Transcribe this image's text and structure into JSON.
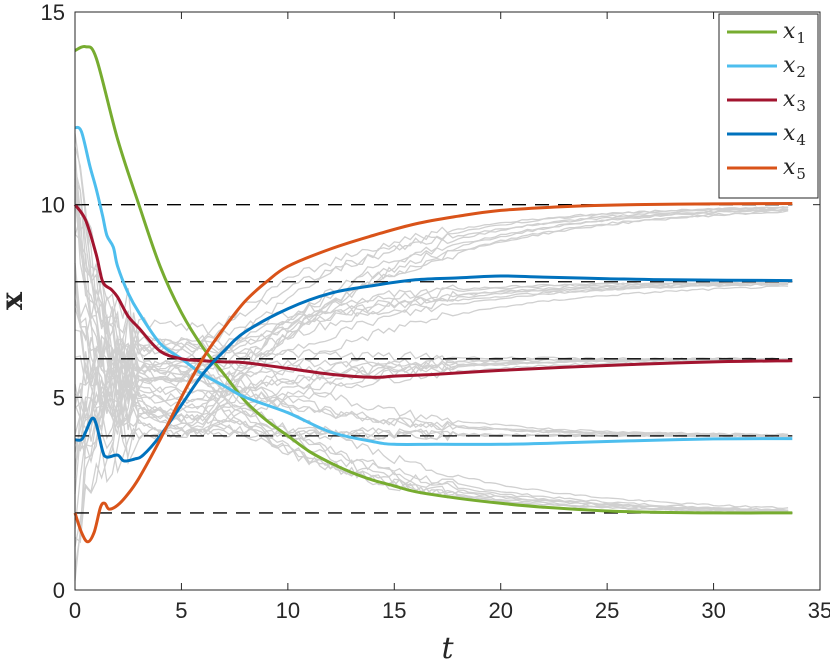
{
  "chart_data": {
    "type": "line",
    "xlabel": "t",
    "ylabel": "x",
    "xlim": [
      0,
      35
    ],
    "ylim": [
      0,
      15
    ],
    "xticks": [
      0,
      5,
      10,
      15,
      20,
      25,
      30,
      35
    ],
    "yticks": [
      0,
      5,
      10,
      15
    ],
    "grid": false,
    "legend_position": "top-right",
    "reference_lines": [
      2,
      4,
      6,
      8,
      10
    ],
    "series": [
      {
        "name": "x",
        "subscript": "1",
        "color": "#77AC30",
        "points": [
          [
            0,
            14
          ],
          [
            0.5,
            14.1
          ],
          [
            1,
            13.8
          ],
          [
            2,
            11.7
          ],
          [
            3,
            10
          ],
          [
            4,
            8.4
          ],
          [
            5,
            7.2
          ],
          [
            6,
            6.3
          ],
          [
            7,
            5.6
          ],
          [
            8,
            4.9
          ],
          [
            9,
            4.4
          ],
          [
            10,
            4
          ],
          [
            11,
            3.6
          ],
          [
            12,
            3.3
          ],
          [
            13,
            3.05
          ],
          [
            14,
            2.85
          ],
          [
            15,
            2.7
          ],
          [
            16,
            2.55
          ],
          [
            18,
            2.38
          ],
          [
            20,
            2.25
          ],
          [
            22,
            2.15
          ],
          [
            25,
            2.05
          ],
          [
            28,
            2.01
          ],
          [
            30,
            2
          ],
          [
            33.7,
            2
          ]
        ]
      },
      {
        "name": "x",
        "subscript": "2",
        "color": "#4DBEEE",
        "points": [
          [
            0,
            12
          ],
          [
            0.3,
            11.9
          ],
          [
            0.7,
            11
          ],
          [
            1,
            10.4
          ],
          [
            1.3,
            9.7
          ],
          [
            1.5,
            9.2
          ],
          [
            1.8,
            8.9
          ],
          [
            2,
            8.4
          ],
          [
            2.5,
            7.7
          ],
          [
            3,
            7.2
          ],
          [
            4,
            6.4
          ],
          [
            5,
            6
          ],
          [
            6,
            5.6
          ],
          [
            7,
            5.3
          ],
          [
            8,
            5
          ],
          [
            10,
            4.6
          ],
          [
            12,
            4.1
          ],
          [
            14,
            3.85
          ],
          [
            15,
            3.78
          ],
          [
            17,
            3.78
          ],
          [
            20,
            3.78
          ],
          [
            23,
            3.82
          ],
          [
            26,
            3.87
          ],
          [
            30,
            3.92
          ],
          [
            33.7,
            3.93
          ]
        ]
      },
      {
        "name": "x",
        "subscript": "3",
        "color": "#A2142F",
        "points": [
          [
            0,
            10
          ],
          [
            0.5,
            9.6
          ],
          [
            1,
            8.7
          ],
          [
            1.3,
            8
          ],
          [
            1.7,
            7.8
          ],
          [
            2,
            7.6
          ],
          [
            2.5,
            7.1
          ],
          [
            3,
            6.8
          ],
          [
            4,
            6.2
          ],
          [
            5,
            6
          ],
          [
            6,
            5.95
          ],
          [
            7,
            5.92
          ],
          [
            8,
            5.9
          ],
          [
            10,
            5.75
          ],
          [
            12,
            5.6
          ],
          [
            14,
            5.52
          ],
          [
            15,
            5.55
          ],
          [
            17,
            5.6
          ],
          [
            20,
            5.7
          ],
          [
            23,
            5.78
          ],
          [
            26,
            5.85
          ],
          [
            30,
            5.92
          ],
          [
            33.7,
            5.95
          ]
        ]
      },
      {
        "name": "x",
        "subscript": "4",
        "color": "#0072BD",
        "points": [
          [
            0,
            3.9
          ],
          [
            0.3,
            3.9
          ],
          [
            0.5,
            4.1
          ],
          [
            0.8,
            4.45
          ],
          [
            1,
            4.3
          ],
          [
            1.3,
            3.6
          ],
          [
            1.5,
            3.45
          ],
          [
            2,
            3.5
          ],
          [
            2.3,
            3.35
          ],
          [
            2.8,
            3.4
          ],
          [
            3.2,
            3.5
          ],
          [
            4,
            4
          ],
          [
            5,
            4.8
          ],
          [
            6,
            5.6
          ],
          [
            7,
            6.2
          ],
          [
            8,
            6.7
          ],
          [
            10,
            7.3
          ],
          [
            12,
            7.7
          ],
          [
            14,
            7.9
          ],
          [
            16,
            8.05
          ],
          [
            18,
            8.1
          ],
          [
            20,
            8.15
          ],
          [
            22,
            8.12
          ],
          [
            25,
            8.08
          ],
          [
            28,
            8.05
          ],
          [
            33.7,
            8.03
          ]
        ]
      },
      {
        "name": "x",
        "subscript": "5",
        "color": "#D95319",
        "points": [
          [
            0,
            2
          ],
          [
            0.3,
            1.5
          ],
          [
            0.6,
            1.25
          ],
          [
            0.9,
            1.5
          ],
          [
            1.2,
            2.15
          ],
          [
            1.4,
            2.25
          ],
          [
            1.6,
            2.1
          ],
          [
            2,
            2.2
          ],
          [
            2.5,
            2.5
          ],
          [
            3,
            2.9
          ],
          [
            4,
            3.9
          ],
          [
            5,
            5
          ],
          [
            6,
            6
          ],
          [
            7,
            6.8
          ],
          [
            8,
            7.5
          ],
          [
            9,
            8
          ],
          [
            10,
            8.4
          ],
          [
            12,
            8.85
          ],
          [
            14,
            9.2
          ],
          [
            16,
            9.5
          ],
          [
            18,
            9.7
          ],
          [
            20,
            9.85
          ],
          [
            23,
            9.95
          ],
          [
            26,
            10
          ],
          [
            30,
            10.02
          ],
          [
            33.7,
            10.03
          ]
        ]
      }
    ],
    "gray_trajectory_color": "#d0d0d0"
  }
}
